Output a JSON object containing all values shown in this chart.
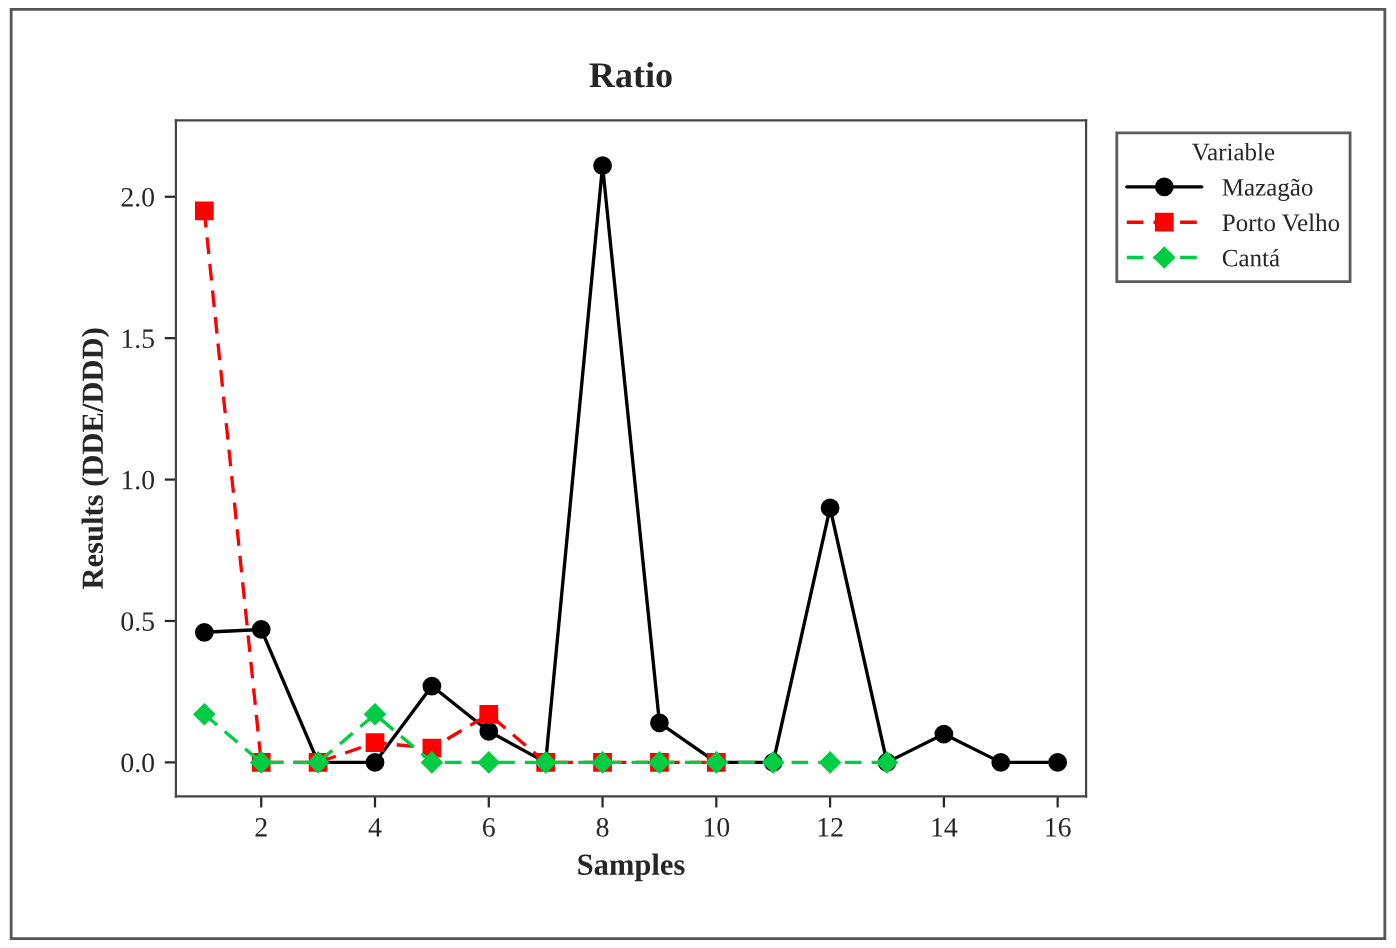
{
  "chart_data": {
    "type": "line",
    "title": "Ratio",
    "xlabel": "Samples",
    "ylabel": "Results (DDE/DDD)",
    "legend_title": "Variable",
    "legend": "top right",
    "grid": false,
    "xlim": [
      0.5,
      16.5
    ],
    "xticks": [
      2,
      4,
      6,
      8,
      10,
      12,
      14,
      16
    ],
    "ylim": [
      -0.12,
      2.27
    ],
    "yticks": [
      {
        "value": 0,
        "label": "0.0"
      },
      {
        "value": 0.5,
        "label": "0.5"
      },
      {
        "value": 1,
        "label": "1.0"
      },
      {
        "value": 1.5,
        "label": "1.5"
      },
      {
        "value": 2,
        "label": "2.0"
      }
    ],
    "series": [
      {
        "name": "Mazagão",
        "color": "#000000",
        "marker": "circle",
        "line_style": "solid",
        "x": [
          1,
          2,
          3,
          4,
          5,
          6,
          7,
          8,
          9,
          10,
          11,
          12,
          13,
          14,
          15,
          16
        ],
        "values": [
          0.46,
          0.47,
          0,
          0,
          0.27,
          0.11,
          0,
          2.11,
          0.14,
          0,
          0,
          0.9,
          0,
          0.1,
          0,
          0
        ]
      },
      {
        "name": "Porto Velho",
        "color": "#ff0000",
        "marker": "square",
        "line_style": "dashed",
        "x": [
          1,
          2,
          3,
          4,
          5,
          6,
          7,
          8,
          9,
          10
        ],
        "values": [
          1.95,
          0,
          0,
          0.07,
          0.05,
          0.17,
          0,
          0,
          0,
          0
        ]
      },
      {
        "name": "Cantá",
        "color": "#00cc44",
        "marker": "diamond",
        "line_style": "dashed",
        "x": [
          1,
          2,
          3,
          4,
          5,
          6,
          7,
          8,
          9,
          10,
          11,
          12,
          13
        ],
        "values": [
          0.17,
          0,
          0,
          0.17,
          0,
          0,
          0,
          0,
          0,
          0,
          0,
          0,
          0
        ]
      }
    ]
  }
}
